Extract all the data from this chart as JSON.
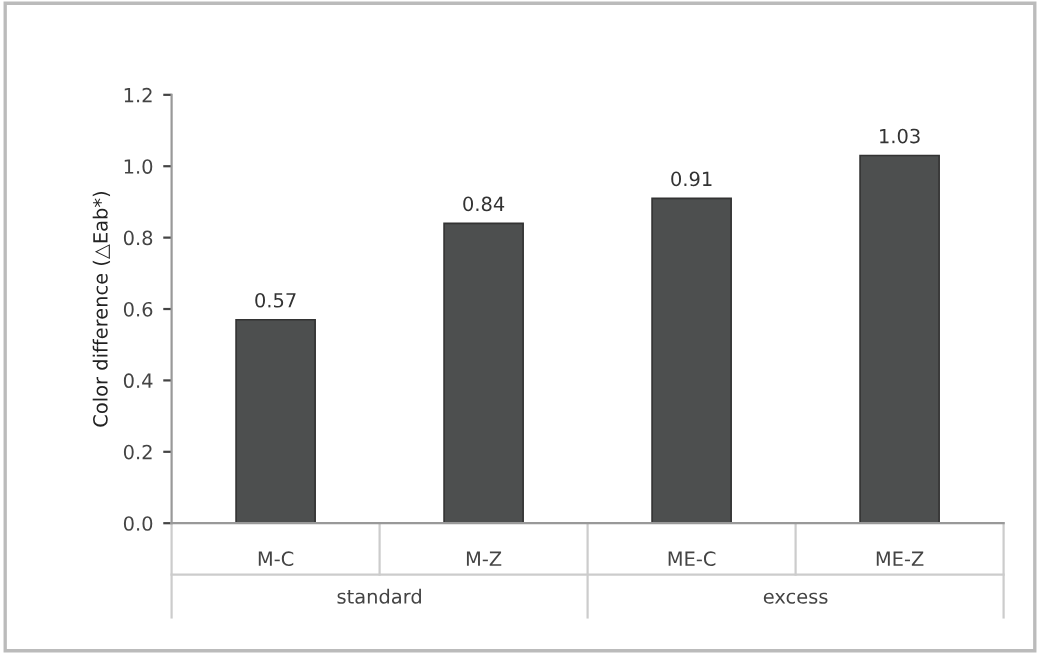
{
  "chart_data": {
    "type": "bar",
    "ylabel": "Color difference (△Eab*)",
    "categories": [
      "M-C",
      "M-Z",
      "ME-C",
      "ME-Z"
    ],
    "values": [
      0.57,
      0.84,
      0.91,
      1.03
    ],
    "color": "#4d4f4f",
    "data_labels": true,
    "ylim": [
      0.0,
      1.2
    ],
    "yticks": [
      {
        "value": 0.0,
        "label": "0.0"
      },
      {
        "value": 0.2,
        "label": "0.2"
      },
      {
        "value": 0.4,
        "label": "0.4"
      },
      {
        "value": 0.6,
        "label": "0.6"
      },
      {
        "value": 0.8,
        "label": "0.8"
      },
      {
        "value": 1.0,
        "label": "1.0"
      },
      {
        "value": 1.2,
        "label": "1.2"
      }
    ],
    "grid": false,
    "annotations": [
      "standard",
      "excess"
    ]
  }
}
